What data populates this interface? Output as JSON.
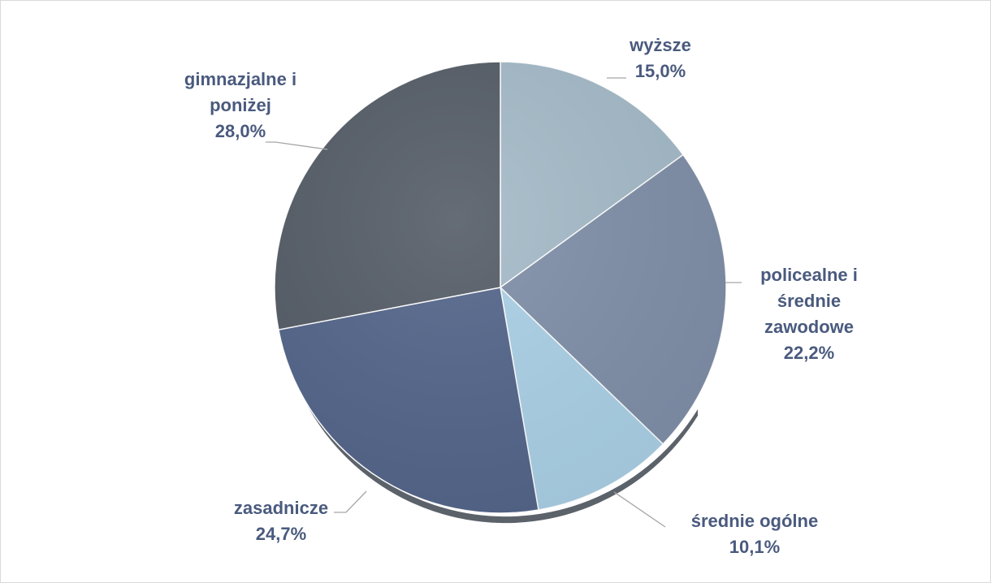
{
  "chart_data": {
    "type": "pie",
    "slices": [
      {
        "category": [
          "wyższe"
        ],
        "value": 15.0,
        "value_label": "15,0%",
        "color": "#a4bac8"
      },
      {
        "category": [
          "policealne i",
          "średnie",
          "zawodowe"
        ],
        "value": 22.2,
        "value_label": "22,2%",
        "color": "#7f8fa8"
      },
      {
        "category": [
          "średnie ogólne"
        ],
        "value": 10.1,
        "value_label": "10,1%",
        "color": "#aad0e6"
      },
      {
        "category": [
          "zasadnicze"
        ],
        "value": 24.7,
        "value_label": "24,7%",
        "color": "#53658a"
      },
      {
        "category": [
          "gimnazjalne i",
          "poniżej"
        ],
        "value": 28.0,
        "value_label": "28,0%",
        "color": "#545c66"
      }
    ],
    "start_angle": "12 o'clock",
    "direction": "clockwise",
    "legend": "none",
    "data_labels": "outside-with-leader-lines"
  }
}
